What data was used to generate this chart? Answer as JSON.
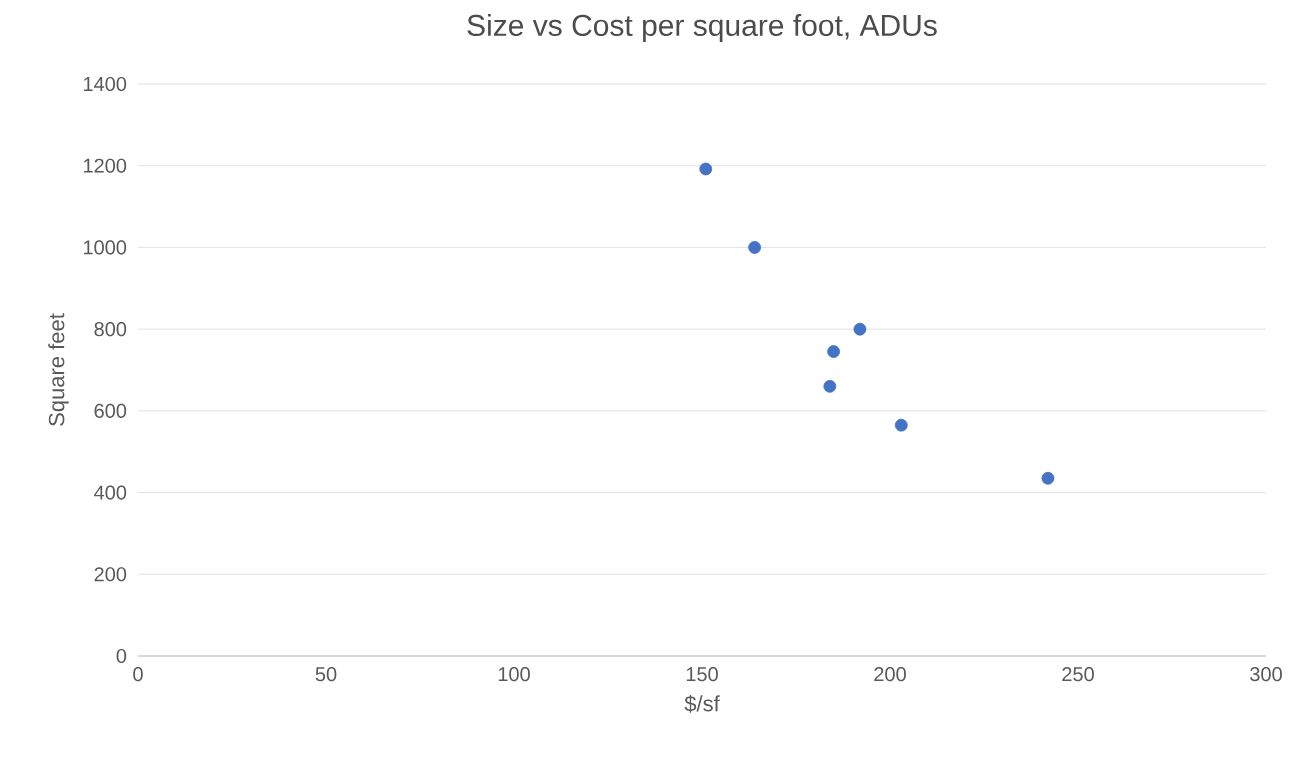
{
  "chart_data": {
    "type": "scatter",
    "title": "Size vs Cost per square foot, ADUs",
    "xlabel": "$/sf",
    "ylabel": "Square feet",
    "x": [
      151,
      164,
      192,
      185,
      184,
      203,
      242
    ],
    "values": [
      1192,
      1000,
      800,
      745,
      660,
      565,
      435
    ],
    "color": "#4472c4",
    "marker": "circle",
    "xlim": [
      0,
      300
    ],
    "xticks": [
      0,
      50,
      100,
      150,
      200,
      250,
      300
    ],
    "ylim": [
      0,
      1400
    ],
    "yticks": [
      0,
      200,
      400,
      600,
      800,
      1000,
      1200,
      1400
    ],
    "grid": "y"
  }
}
